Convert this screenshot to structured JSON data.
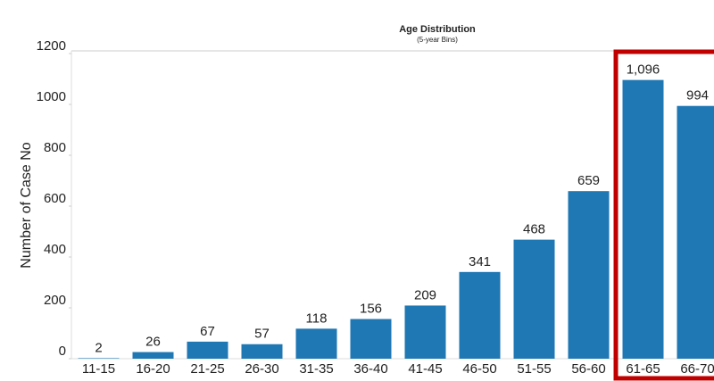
{
  "chart_data": {
    "type": "bar",
    "title": "Age Distribution",
    "subtitle": "(5-year Bins)",
    "y_label": "Number of Case No",
    "categories": [
      "11-15",
      "16-20",
      "21-25",
      "26-30",
      "31-35",
      "36-40",
      "41-45",
      "46-50",
      "51-55",
      "56-60",
      "61-65",
      "66-70"
    ],
    "values": [
      2,
      26,
      67,
      57,
      118,
      156,
      209,
      341,
      468,
      659,
      1096,
      994
    ],
    "value_labels": [
      "2",
      "26",
      "67",
      "57",
      "118",
      "156",
      "209",
      "341",
      "468",
      "659",
      "1,096",
      "994"
    ],
    "color": "#1f77b4",
    "ylim": [
      0,
      1200
    ],
    "yticks": [
      0,
      200,
      400,
      600,
      800,
      1000,
      1200
    ],
    "grid": false
  }
}
